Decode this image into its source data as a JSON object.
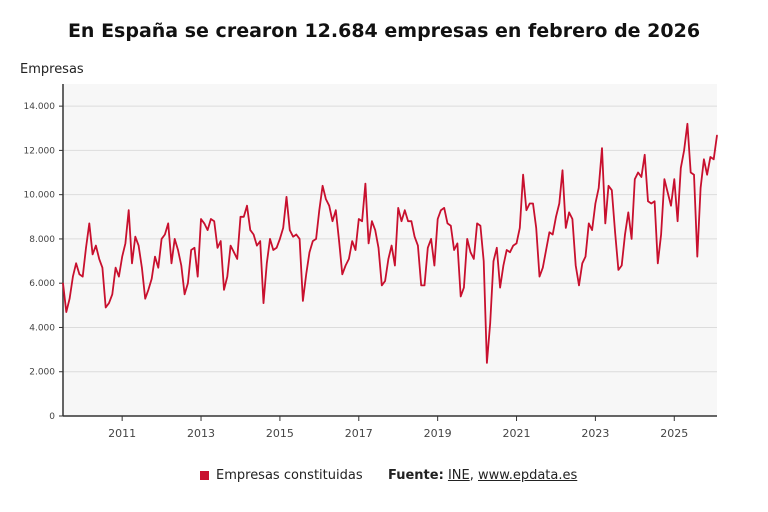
{
  "title": "En España se crearon 12.684 empresas en febrero de 2026",
  "chart_data": {
    "type": "line",
    "title": "En España se crearon 12.684 empresas en febrero de 2026",
    "ylabel": "Empresas",
    "xlabel": "",
    "ylim": [
      0,
      15000
    ],
    "yticks": [
      0,
      2000,
      4000,
      6000,
      8000,
      10000,
      12000,
      14000
    ],
    "ytick_labels": [
      "0",
      "2.000",
      "4.000",
      "6.000",
      "8.000",
      "10.000",
      "12.000",
      "14.000"
    ],
    "xticks": [
      "2011",
      "2013",
      "2015",
      "2017",
      "2019",
      "2021",
      "2023",
      "2025"
    ],
    "grid": true,
    "legend": "bottom",
    "color": "#c8102e",
    "x_start": "2009-07",
    "x_end": "2026-02",
    "x_frequency": "monthly",
    "series": [
      {
        "name": "Empresas constituidas",
        "values": [
          6000,
          4700,
          5300,
          6300,
          6900,
          6400,
          6300,
          7600,
          8700,
          7300,
          7700,
          7100,
          6700,
          4900,
          5100,
          5500,
          6700,
          6300,
          7200,
          7800,
          9300,
          6900,
          8100,
          7700,
          6700,
          5300,
          5700,
          6200,
          7200,
          6700,
          8000,
          8200,
          8700,
          6900,
          8000,
          7500,
          6800,
          5500,
          6000,
          7500,
          7600,
          6300,
          8900,
          8700,
          8400,
          8900,
          8800,
          7600,
          7900,
          5700,
          6300,
          7700,
          7400,
          7100,
          9000,
          9000,
          9500,
          8400,
          8200,
          7700,
          7900,
          5100,
          6900,
          8000,
          7500,
          7600,
          8000,
          8500,
          9900,
          8400,
          8100,
          8200,
          8000,
          5200,
          6400,
          7400,
          7900,
          8000,
          9300,
          10400,
          9800,
          9500,
          8800,
          9300,
          7900,
          6400,
          6800,
          7100,
          7900,
          7500,
          8900,
          8800,
          10500,
          7800,
          8800,
          8400,
          7600,
          5900,
          6100,
          7100,
          7700,
          6800,
          9400,
          8800,
          9300,
          8800,
          8800,
          8100,
          7700,
          5900,
          5900,
          7600,
          8000,
          6800,
          8900,
          9300,
          9400,
          8700,
          8600,
          7500,
          7800,
          5400,
          5800,
          8000,
          7400,
          7100,
          8700,
          8600,
          7000,
          2400,
          4200,
          7000,
          7600,
          5800,
          6800,
          7500,
          7400,
          7700,
          7800,
          8500,
          10900,
          9300,
          9600,
          9600,
          8500,
          6300,
          6700,
          7500,
          8300,
          8200,
          9000,
          9600,
          11100,
          8500,
          9200,
          8900,
          6800,
          5900,
          6900,
          7200,
          8700,
          8400,
          9600,
          10300,
          12100,
          8700,
          10400,
          10200,
          8300,
          6600,
          6800,
          8200,
          9200,
          8000,
          10700,
          11000,
          10800,
          11800,
          9700,
          9600,
          9700,
          6900,
          8200,
          10700,
          10100,
          9500,
          10700,
          8800,
          11200,
          12000,
          13200,
          11000,
          10900,
          7200,
          10300,
          11600,
          10900,
          11700,
          11600,
          12684
        ]
      }
    ]
  },
  "legend": {
    "label": "Empresas constituidas"
  },
  "source": {
    "label": "Fuente:",
    "org": "INE",
    "separator": ",",
    "site": "www.epdata.es"
  }
}
